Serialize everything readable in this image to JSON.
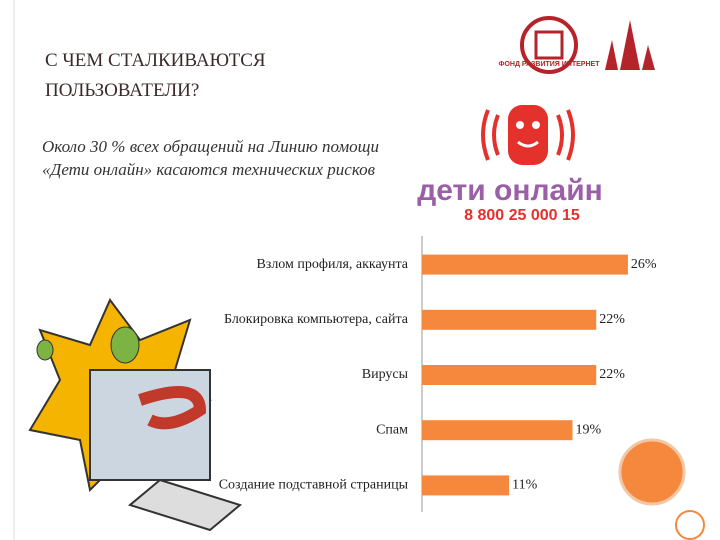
{
  "chart_data": {
    "type": "barh",
    "title": "С ЧЕМ СТАЛКИВАЮТСЯ ПОЛЬЗОВАТЕЛИ?",
    "subtitle": "Около 30 % всех обращений на Линию помощи «Дети онлайн» касаются технических рисков",
    "categories": [
      "Взлом профиля, аккаунта",
      "Блокировка компьютера, сайта",
      "Вирусы",
      "Спам",
      "Создание подставной страницы"
    ],
    "values": [
      26,
      22,
      22,
      19,
      11
    ],
    "value_labels": [
      "26%",
      "22%",
      "22%",
      "19%",
      "11%"
    ],
    "color": "#f5883c"
  },
  "logos": {
    "fund": "ФОНД РАЗВИТИЯ ИНТЕРНЕТ",
    "brand": "дети онлайн",
    "phone": "8 800 25 000 15"
  }
}
